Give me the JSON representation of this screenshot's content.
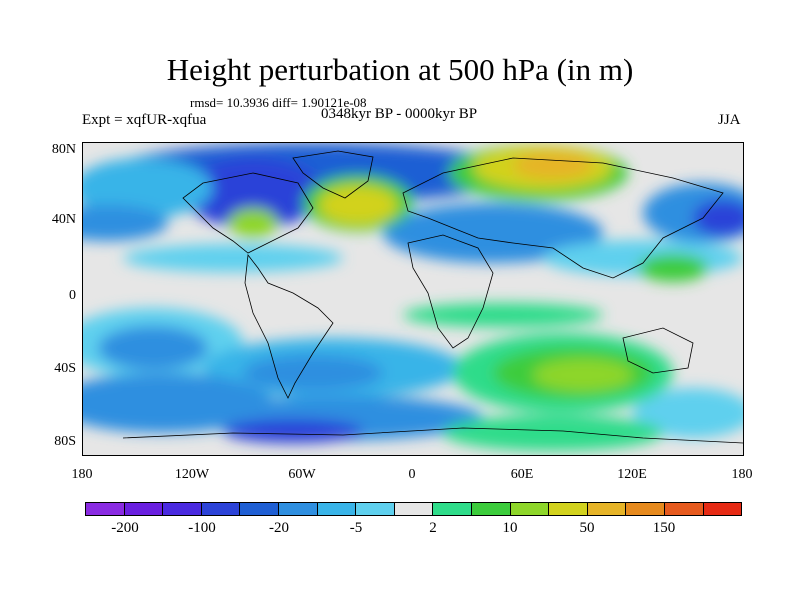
{
  "title": "Height perturbation at 500 hPa (in m)",
  "stats": "rmsd= 10.3936 diff= 1.90121e-08",
  "experiment": "Expt = xqfUR-xqfua",
  "period": "0348kyr BP - 0000kyr BP",
  "season": "JJA",
  "map": {
    "lat_ticks": [
      "80N",
      "40N",
      "0",
      "40S",
      "80S"
    ],
    "lon_ticks": [
      "180",
      "120W",
      "60W",
      "0",
      "60E",
      "120E",
      "180"
    ]
  },
  "colorbar": {
    "labels": [
      "-200",
      "-100",
      "-20",
      "-5",
      "2",
      "10",
      "50",
      "150"
    ],
    "colors": [
      "#8a2be2",
      "#6a1fe0",
      "#4a2ae0",
      "#2c43d8",
      "#1f5fd4",
      "#2f8fe0",
      "#39b4e8",
      "#5fd0ee",
      "#e6e6e6",
      "#2fdc8a",
      "#3ccc3c",
      "#8ed62a",
      "#d2d21e",
      "#e6b428",
      "#e68a1e",
      "#e65a1e",
      "#e62a14"
    ]
  }
}
